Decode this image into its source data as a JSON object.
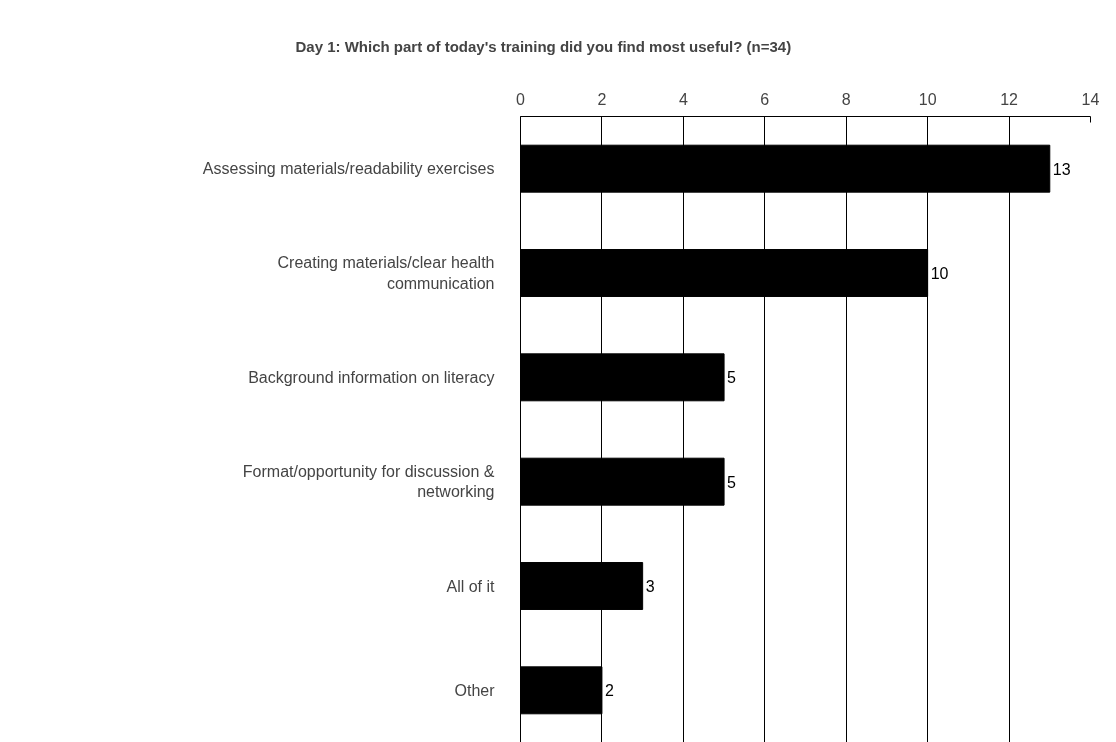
{
  "chart_data": {
    "type": "bar",
    "orientation": "horizontal",
    "title": "Day 1: Which part of today's training did you find most useful? (n=34)",
    "categories": [
      "Assessing materials/readability exercises",
      "Creating materials/clear health communication",
      "Background information on literacy",
      "Format/opportunity for discussion & networking",
      "All of it",
      "Other"
    ],
    "values": [
      13,
      10,
      5,
      5,
      3,
      2
    ],
    "color": "#000000",
    "xlim": [
      0,
      14
    ],
    "xticks": [
      0,
      2,
      4,
      6,
      8,
      10,
      12,
      14
    ],
    "grid": "x",
    "data_labels": true
  }
}
